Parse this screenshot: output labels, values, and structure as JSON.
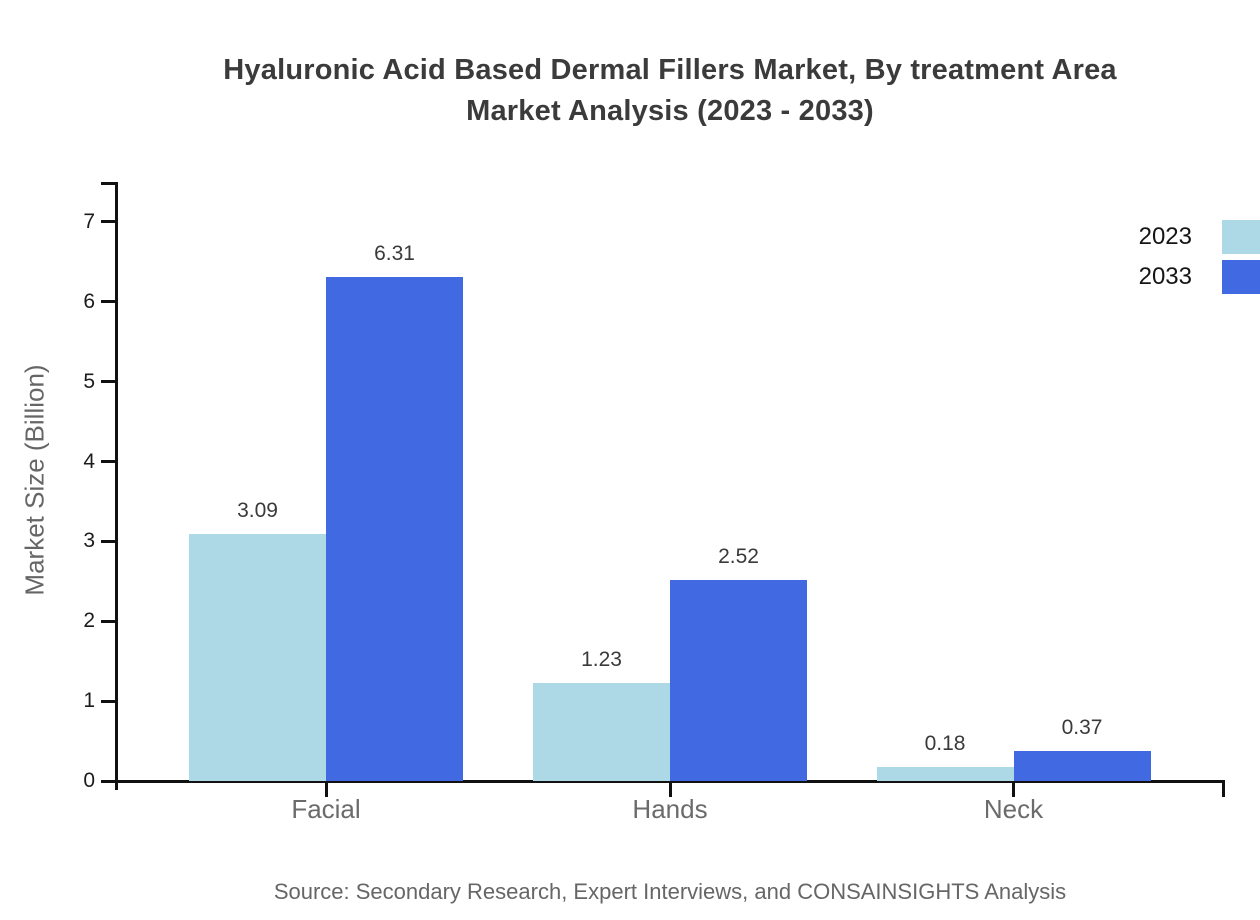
{
  "title": {
    "line1": "Hyaluronic Acid Based Dermal Fillers Market, By treatment Area",
    "line2": "Market Analysis (2023 - 2033)"
  },
  "source": "Source: Secondary Research, Expert Interviews, and CONSAINSIGHTS Analysis",
  "chart_data": {
    "type": "bar",
    "title": "Hyaluronic Acid Based Dermal Fillers Market, By treatment Area Market Analysis (2023 - 2033)",
    "categories": [
      "Facial",
      "Hands",
      "Neck"
    ],
    "series": [
      {
        "name": "2023",
        "color": "#ADD8E6",
        "values": [
          3.09,
          1.23,
          0.18
        ]
      },
      {
        "name": "2033",
        "color": "#4169E1",
        "values": [
          6.31,
          2.52,
          0.37
        ]
      }
    ],
    "xlabel": "",
    "ylabel": "Market Size (Billion)",
    "yticks": [
      0,
      1,
      2,
      3,
      4,
      5,
      6,
      7
    ],
    "ylim": [
      0,
      7.5
    ],
    "grid": false,
    "value_labels": true,
    "legend_position": "top-right",
    "background_color": "#ffffff",
    "axis_color": "#111111"
  }
}
